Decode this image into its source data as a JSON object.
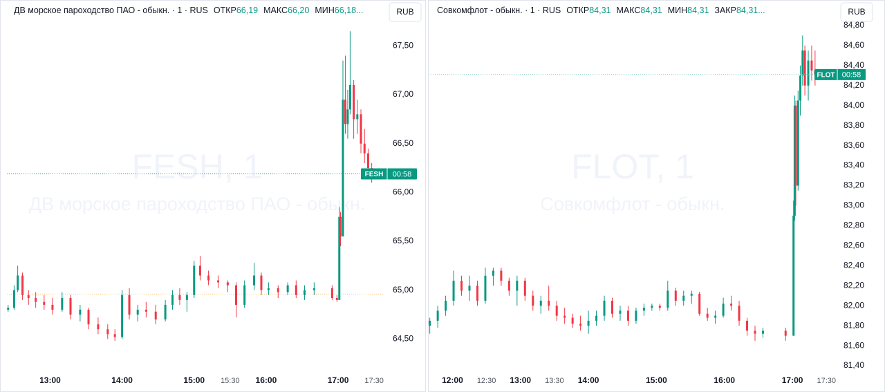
{
  "chart_data": [
    {
      "type": "candlestick",
      "header": {
        "title": "ДВ морское пароходство ПАО - обыкн. · 1 · RUS",
        "stats": [
          {
            "label": "ОТКР",
            "value": "66,19"
          },
          {
            "label": "МАКС",
            "value": "66,20"
          },
          {
            "label": "МИН",
            "value": "66,18..."
          }
        ]
      },
      "currency": "RUB",
      "watermark": {
        "title": "FESH, 1",
        "subtitle": "ДВ морское пароходство ПАО - обыкн."
      },
      "symbol": "FESH",
      "countdown": "00:58",
      "last_price": 66.19,
      "prev_close": 64.96,
      "up_color": "#089981",
      "down_color": "#f23645",
      "xlim": [
        744,
        1058
      ],
      "ylim": [
        64.17,
        67.97
      ],
      "yticks": [
        {
          "value": 64.5,
          "label": "64,50"
        },
        {
          "value": 65.0,
          "label": "65,00"
        },
        {
          "value": 65.5,
          "label": "65,50"
        },
        {
          "value": 66.0,
          "label": "66,00"
        },
        {
          "value": 66.5,
          "label": "66,50"
        },
        {
          "value": 67.0,
          "label": "67,00"
        },
        {
          "value": 67.5,
          "label": "67,50"
        }
      ],
      "xticks": [
        {
          "value": 780,
          "label": "13:00"
        },
        {
          "value": 840,
          "label": "14:00"
        },
        {
          "value": 900,
          "label": "15:00"
        },
        {
          "value": 960,
          "label": "16:00"
        },
        {
          "value": 1020,
          "label": "17:00"
        }
      ],
      "xticks_minor": [
        {
          "value": 930,
          "label": "15:30"
        },
        {
          "value": 1050,
          "label": "17:30"
        }
      ],
      "series": {
        "x": [
          745,
          750,
          753,
          757,
          762,
          768,
          775,
          782,
          790,
          797,
          805,
          812,
          820,
          828,
          834,
          840,
          846,
          853,
          860,
          868,
          876,
          882,
          888,
          894,
          900,
          905,
          912,
          920,
          928,
          935,
          942,
          950,
          956,
          962,
          970,
          978,
          985,
          992,
          1000,
          1015,
          1019,
          1021,
          1022,
          1024,
          1026,
          1028,
          1030,
          1033,
          1036,
          1039,
          1042,
          1045,
          1048
        ],
        "open": [
          64.8,
          64.82,
          65.0,
          65.15,
          64.95,
          64.92,
          64.88,
          64.85,
          64.8,
          64.92,
          64.75,
          64.8,
          64.65,
          64.6,
          64.55,
          64.52,
          64.95,
          64.75,
          64.8,
          64.78,
          64.7,
          64.85,
          64.95,
          64.9,
          64.95,
          65.25,
          65.15,
          65.1,
          65.08,
          65.05,
          64.85,
          65.05,
          65.15,
          65.0,
          65.02,
          64.98,
          65.05,
          64.95,
          65.0,
          65.02,
          64.92,
          64.9,
          65.75,
          65.55,
          66.95,
          66.7,
          66.85,
          67.1,
          66.75,
          66.8,
          66.5,
          66.4,
          66.25
        ],
        "high": [
          64.85,
          65.05,
          65.25,
          65.18,
          65.0,
          64.98,
          64.95,
          64.92,
          64.98,
          64.95,
          64.85,
          64.82,
          64.72,
          64.65,
          64.6,
          65.0,
          65.02,
          64.85,
          64.88,
          64.85,
          64.9,
          65.0,
          65.02,
          64.98,
          65.3,
          65.35,
          65.2,
          65.15,
          65.1,
          65.08,
          65.1,
          65.28,
          65.18,
          65.08,
          65.05,
          65.08,
          65.1,
          65.05,
          65.08,
          65.05,
          64.95,
          65.85,
          65.8,
          67.35,
          67.4,
          67.05,
          67.65,
          67.15,
          66.95,
          66.85,
          66.65,
          66.45,
          66.3
        ],
        "low": [
          64.78,
          64.8,
          64.98,
          64.9,
          64.85,
          64.82,
          64.8,
          64.75,
          64.78,
          64.7,
          64.68,
          64.6,
          64.55,
          64.5,
          64.48,
          64.5,
          64.7,
          64.68,
          64.72,
          64.65,
          64.68,
          64.8,
          64.85,
          64.78,
          64.92,
          65.1,
          65.05,
          65.02,
          64.98,
          64.72,
          64.82,
          65.0,
          64.95,
          64.95,
          64.92,
          64.95,
          64.92,
          64.9,
          64.95,
          64.9,
          64.88,
          64.9,
          65.45,
          65.55,
          66.6,
          66.55,
          66.8,
          66.55,
          66.6,
          66.4,
          66.3,
          66.15,
          66.1
        ],
        "close": [
          64.82,
          65.0,
          65.15,
          64.95,
          64.92,
          64.88,
          64.85,
          64.8,
          64.92,
          64.75,
          64.8,
          64.65,
          64.6,
          64.55,
          64.52,
          64.95,
          64.75,
          64.8,
          64.78,
          64.7,
          64.85,
          64.95,
          64.9,
          64.95,
          65.25,
          65.15,
          65.1,
          65.08,
          65.05,
          64.85,
          65.05,
          65.15,
          65.0,
          65.02,
          64.98,
          65.05,
          64.95,
          65.0,
          65.02,
          64.92,
          64.9,
          65.75,
          65.55,
          66.95,
          66.7,
          66.85,
          67.1,
          66.75,
          66.8,
          66.5,
          66.4,
          66.25,
          66.19
        ]
      }
    },
    {
      "type": "candlestick",
      "header": {
        "title": "Совкомфлот - обыкн. · 1 · RUS",
        "stats": [
          {
            "label": "ОТКР",
            "value": "84,31"
          },
          {
            "label": "МАКС",
            "value": "84,31"
          },
          {
            "label": "МИН",
            "value": "84,31"
          },
          {
            "label": "ЗАКР",
            "value": "84,31..."
          }
        ]
      },
      "currency": "RUB",
      "watermark": {
        "title": "FLOT, 1",
        "subtitle": "Совкомфлот - обыкн."
      },
      "symbol": "FLOT",
      "countdown": "00:58",
      "last_price": 84.31,
      "up_color": "#089981",
      "down_color": "#f23645",
      "xlim": [
        699,
        1059
      ],
      "ylim": [
        81.345,
        85.055
      ],
      "yticks": [
        {
          "value": 81.4,
          "label": "81,40"
        },
        {
          "value": 81.6,
          "label": "81,60"
        },
        {
          "value": 81.8,
          "label": "81,80"
        },
        {
          "value": 82.0,
          "label": "82,00"
        },
        {
          "value": 82.2,
          "label": "82,20"
        },
        {
          "value": 82.4,
          "label": "82,40"
        },
        {
          "value": 82.6,
          "label": "82,60"
        },
        {
          "value": 82.8,
          "label": "82,80"
        },
        {
          "value": 83.0,
          "label": "83,00"
        },
        {
          "value": 83.2,
          "label": "83,20"
        },
        {
          "value": 83.4,
          "label": "83,40"
        },
        {
          "value": 83.6,
          "label": "83,60"
        },
        {
          "value": 83.8,
          "label": "83,80"
        },
        {
          "value": 84.0,
          "label": "84,00"
        },
        {
          "value": 84.2,
          "label": "84,20"
        },
        {
          "value": 84.4,
          "label": "84,40"
        },
        {
          "value": 84.6,
          "label": "84,60"
        },
        {
          "value": 84.8,
          "label": "84,80"
        }
      ],
      "xticks": [
        {
          "value": 720,
          "label": "12:00"
        },
        {
          "value": 780,
          "label": "13:00"
        },
        {
          "value": 840,
          "label": "14:00"
        },
        {
          "value": 900,
          "label": "15:00"
        },
        {
          "value": 960,
          "label": "16:00"
        },
        {
          "value": 1020,
          "label": "17:00"
        }
      ],
      "xticks_minor": [
        {
          "value": 750,
          "label": "12:30"
        },
        {
          "value": 810,
          "label": "13:30"
        },
        {
          "value": 1050,
          "label": "17:30"
        }
      ],
      "series": {
        "x": [
          700,
          707,
          714,
          721,
          728,
          735,
          742,
          749,
          756,
          763,
          770,
          777,
          784,
          791,
          798,
          805,
          812,
          819,
          826,
          833,
          840,
          847,
          854,
          861,
          868,
          875,
          882,
          889,
          896,
          903,
          910,
          917,
          924,
          931,
          938,
          945,
          952,
          959,
          966,
          973,
          980,
          987,
          994,
          1014,
          1021,
          1022,
          1023,
          1025,
          1027,
          1029,
          1031,
          1034,
          1037,
          1040
        ],
        "open": [
          81.8,
          81.85,
          81.95,
          82.05,
          82.25,
          82.15,
          82.2,
          82.05,
          82.3,
          82.35,
          82.25,
          82.15,
          82.25,
          82.1,
          82.0,
          82.05,
          82.0,
          81.9,
          81.88,
          81.82,
          81.8,
          81.85,
          81.9,
          82.05,
          81.92,
          81.95,
          81.85,
          81.95,
          81.98,
          82.0,
          81.98,
          82.15,
          82.05,
          82.1,
          82.12,
          81.92,
          81.88,
          81.9,
          82.02,
          82.0,
          81.85,
          81.75,
          81.72,
          81.75,
          81.7,
          82.9,
          84.0,
          83.2,
          84.05,
          84.3,
          84.55,
          84.2,
          84.45,
          84.35
        ],
        "high": [
          81.88,
          82.0,
          82.1,
          82.35,
          82.3,
          82.3,
          82.25,
          82.38,
          82.38,
          82.38,
          82.28,
          82.3,
          82.28,
          82.15,
          82.1,
          82.2,
          82.05,
          81.98,
          81.92,
          81.9,
          81.95,
          81.95,
          82.1,
          82.08,
          82.0,
          82.0,
          81.98,
          82.02,
          82.02,
          82.02,
          82.25,
          82.18,
          82.15,
          82.15,
          82.14,
          81.98,
          81.95,
          82.08,
          82.1,
          82.05,
          81.88,
          81.8,
          81.78,
          81.78,
          83.05,
          84.1,
          84.05,
          84.15,
          84.4,
          84.7,
          84.6,
          84.55,
          84.6,
          84.55
        ],
        "low": [
          81.72,
          81.78,
          81.9,
          82.0,
          82.1,
          82.05,
          82.0,
          82.02,
          82.2,
          82.2,
          82.1,
          82.0,
          82.05,
          81.95,
          81.92,
          81.95,
          81.85,
          81.82,
          81.78,
          81.75,
          81.72,
          81.8,
          81.85,
          81.88,
          81.85,
          81.8,
          81.82,
          81.9,
          81.95,
          81.95,
          81.95,
          82.0,
          82.0,
          82.02,
          81.9,
          81.85,
          81.82,
          81.88,
          81.95,
          81.8,
          81.7,
          81.65,
          81.68,
          81.65,
          81.7,
          82.85,
          83.0,
          83.15,
          83.9,
          84.2,
          84.1,
          84.05,
          84.25,
          84.2
        ],
        "close": [
          81.85,
          81.95,
          82.05,
          82.25,
          82.15,
          82.2,
          82.05,
          82.3,
          82.35,
          82.25,
          82.15,
          82.25,
          82.1,
          82.0,
          82.05,
          82.0,
          81.9,
          81.88,
          81.82,
          81.8,
          81.85,
          81.9,
          82.05,
          81.92,
          81.95,
          81.85,
          81.95,
          81.98,
          82.0,
          81.98,
          82.15,
          82.05,
          82.1,
          82.12,
          81.92,
          81.88,
          81.9,
          82.02,
          82.0,
          81.85,
          81.75,
          81.72,
          81.75,
          81.7,
          82.9,
          84.0,
          83.2,
          84.05,
          84.3,
          84.55,
          84.2,
          84.45,
          84.35,
          84.31
        ]
      }
    }
  ]
}
